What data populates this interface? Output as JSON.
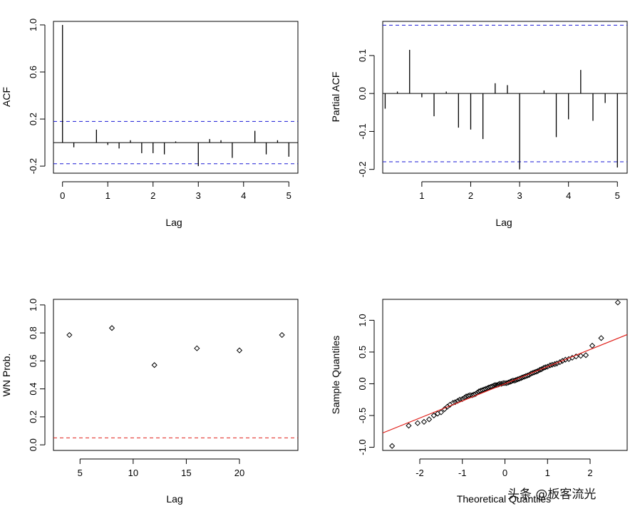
{
  "chart_data": [
    {
      "id": "acf",
      "type": "bar",
      "xlabel": "Lag",
      "ylabel": "ACF",
      "xlim": [
        -0.2,
        5.2
      ],
      "ylim": [
        -0.26,
        1.03
      ],
      "xticks": [
        0,
        1,
        2,
        3,
        4,
        5
      ],
      "yticks": [
        -0.2,
        0.2,
        0.6,
        1.0
      ],
      "ytick_labels": [
        "-0.2",
        "0.2",
        "0.6",
        "1.0"
      ],
      "ci": 0.18,
      "ci_color": "#1a1ad6",
      "lags": [
        0,
        0.25,
        0.5,
        0.75,
        1,
        1.25,
        1.5,
        1.75,
        2,
        2.25,
        2.5,
        2.75,
        3,
        3.25,
        3.5,
        3.75,
        4,
        4.25,
        4.5,
        4.75,
        5
      ],
      "values": [
        1.0,
        -0.04,
        0.0,
        0.11,
        -0.02,
        -0.05,
        0.02,
        -0.09,
        -0.09,
        -0.1,
        0.01,
        0.0,
        -0.2,
        0.03,
        0.02,
        -0.13,
        0.0,
        0.1,
        -0.1,
        0.02,
        -0.12
      ]
    },
    {
      "id": "pacf",
      "type": "bar",
      "xlabel": "Lag",
      "ylabel": "Partial ACF",
      "xlim": [
        0.2,
        5.2
      ],
      "ylim": [
        -0.21,
        0.19
      ],
      "xticks": [
        1,
        2,
        3,
        4,
        5
      ],
      "yticks": [
        -0.2,
        -0.1,
        0.0,
        0.1
      ],
      "ytick_labels": [
        "-0.2",
        "-0.1",
        "0.0",
        "0.1"
      ],
      "ci": 0.18,
      "ci_color": "#1a1ad6",
      "lags": [
        0.25,
        0.5,
        0.75,
        1,
        1.25,
        1.5,
        1.75,
        2,
        2.25,
        2.5,
        2.75,
        3,
        3.25,
        3.5,
        3.75,
        4,
        4.25,
        4.5,
        4.75,
        5
      ],
      "values": [
        -0.04,
        0.005,
        0.115,
        -0.01,
        -0.06,
        0.005,
        -0.09,
        -0.095,
        -0.12,
        0.027,
        0.022,
        -0.2,
        0.0,
        0.008,
        -0.115,
        -0.068,
        0.062,
        -0.072,
        -0.025,
        -0.195
      ]
    },
    {
      "id": "wn",
      "type": "scatter",
      "xlabel": "Lag",
      "ylabel": "WN Prob.",
      "xlim": [
        2.5,
        25.5
      ],
      "ylim": [
        -0.04,
        1.04
      ],
      "xticks": [
        5,
        10,
        15,
        20
      ],
      "yticks": [
        0.0,
        0.2,
        0.4,
        0.6,
        0.8,
        1.0
      ],
      "ytick_labels": [
        "0.0",
        "0.2",
        "0.4",
        "0.6",
        "0.8",
        "1.0"
      ],
      "x": [
        4,
        8,
        12,
        16,
        20,
        24
      ],
      "y": [
        0.785,
        0.835,
        0.57,
        0.69,
        0.675,
        0.785
      ],
      "threshold": 0.05,
      "threshold_color": "#e0201a"
    },
    {
      "id": "qq",
      "type": "scatter",
      "xlabel": "Theoretical Quantiles",
      "ylabel": "Sample Quantiles",
      "xlim": [
        -2.87,
        2.87
      ],
      "ylim": [
        -1.05,
        1.33
      ],
      "xticks": [
        -2,
        -1,
        0,
        1,
        2
      ],
      "yticks": [
        -1.0,
        -0.5,
        0.0,
        0.5,
        1.0
      ],
      "ytick_labels": [
        "-1.0",
        "-0.5",
        "0.0",
        "0.5",
        "1.0"
      ],
      "line_slope": 0.27,
      "line_intercept": 0.0,
      "line_color": "#e0201a",
      "x": [
        -2.65,
        -2.26,
        -2.05,
        -1.9,
        -1.78,
        -1.67,
        -1.58,
        -1.5,
        -1.42,
        -1.35,
        -1.29,
        -1.22,
        -1.17,
        -1.11,
        -1.06,
        -1.0,
        -0.95,
        -0.91,
        -0.86,
        -0.82,
        -0.77,
        -0.73,
        -0.69,
        -0.65,
        -0.61,
        -0.57,
        -0.53,
        -0.49,
        -0.45,
        -0.41,
        -0.38,
        -0.34,
        -0.3,
        -0.26,
        -0.23,
        -0.19,
        -0.15,
        -0.12,
        -0.08,
        -0.04,
        0.0,
        0.04,
        0.08,
        0.12,
        0.15,
        0.19,
        0.23,
        0.26,
        0.3,
        0.34,
        0.38,
        0.41,
        0.45,
        0.49,
        0.53,
        0.57,
        0.61,
        0.65,
        0.69,
        0.73,
        0.77,
        0.82,
        0.86,
        0.91,
        0.95,
        1.0,
        1.06,
        1.11,
        1.17,
        1.22,
        1.29,
        1.35,
        1.42,
        1.5,
        1.58,
        1.67,
        1.78,
        1.9,
        2.05,
        2.26,
        2.65
      ],
      "y": [
        -0.98,
        -0.66,
        -0.62,
        -0.6,
        -0.56,
        -0.5,
        -0.47,
        -0.45,
        -0.4,
        -0.36,
        -0.33,
        -0.3,
        -0.29,
        -0.27,
        -0.25,
        -0.24,
        -0.22,
        -0.2,
        -0.19,
        -0.18,
        -0.18,
        -0.17,
        -0.16,
        -0.14,
        -0.12,
        -0.11,
        -0.1,
        -0.09,
        -0.08,
        -0.07,
        -0.06,
        -0.05,
        -0.04,
        -0.03,
        -0.02,
        -0.02,
        -0.01,
        0.0,
        0.0,
        0.01,
        0.01,
        0.01,
        0.02,
        0.03,
        0.04,
        0.05,
        0.05,
        0.06,
        0.07,
        0.08,
        0.09,
        0.1,
        0.11,
        0.12,
        0.13,
        0.14,
        0.16,
        0.17,
        0.18,
        0.19,
        0.2,
        0.22,
        0.23,
        0.25,
        0.26,
        0.27,
        0.29,
        0.3,
        0.31,
        0.32,
        0.34,
        0.36,
        0.38,
        0.39,
        0.41,
        0.43,
        0.44,
        0.45,
        0.6,
        0.72,
        1.28
      ]
    }
  ],
  "watermark": "头条 @板客流光"
}
